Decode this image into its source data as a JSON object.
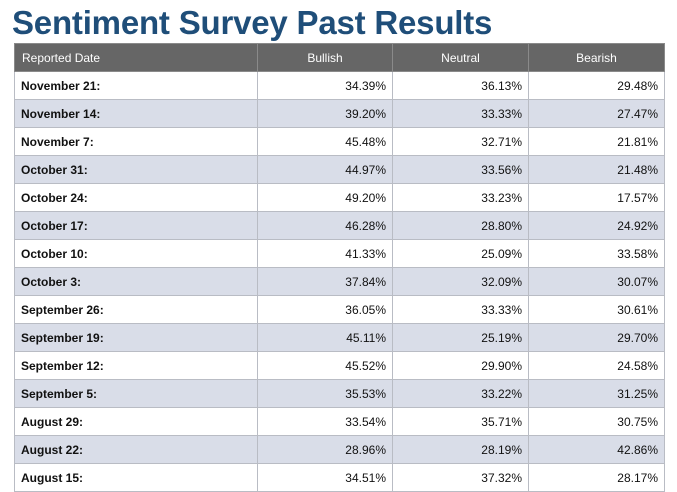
{
  "page": {
    "title": "Sentiment Survey Past Results"
  },
  "table": {
    "columns": [
      "Reported Date",
      "Bullish",
      "Neutral",
      "Bearish"
    ],
    "rows": [
      {
        "date": "November 21:",
        "bullish": "34.39%",
        "neutral": "36.13%",
        "bearish": "29.48%"
      },
      {
        "date": "November 14:",
        "bullish": "39.20%",
        "neutral": "33.33%",
        "bearish": "27.47%"
      },
      {
        "date": "November 7:",
        "bullish": "45.48%",
        "neutral": "32.71%",
        "bearish": "21.81%"
      },
      {
        "date": "October 31:",
        "bullish": "44.97%",
        "neutral": "33.56%",
        "bearish": "21.48%"
      },
      {
        "date": "October 24:",
        "bullish": "49.20%",
        "neutral": "33.23%",
        "bearish": "17.57%"
      },
      {
        "date": "October 17:",
        "bullish": "46.28%",
        "neutral": "28.80%",
        "bearish": "24.92%"
      },
      {
        "date": "October 10:",
        "bullish": "41.33%",
        "neutral": "25.09%",
        "bearish": "33.58%"
      },
      {
        "date": "October 3:",
        "bullish": "37.84%",
        "neutral": "32.09%",
        "bearish": "30.07%"
      },
      {
        "date": "September 26:",
        "bullish": "36.05%",
        "neutral": "33.33%",
        "bearish": "30.61%"
      },
      {
        "date": "September 19:",
        "bullish": "45.11%",
        "neutral": "25.19%",
        "bearish": "29.70%"
      },
      {
        "date": "September 12:",
        "bullish": "45.52%",
        "neutral": "29.90%",
        "bearish": "24.58%"
      },
      {
        "date": "September 5:",
        "bullish": "35.53%",
        "neutral": "33.22%",
        "bearish": "31.25%"
      },
      {
        "date": "August 29:",
        "bullish": "33.54%",
        "neutral": "35.71%",
        "bearish": "30.75%"
      },
      {
        "date": "August 22:",
        "bullish": "28.96%",
        "neutral": "28.19%",
        "bearish": "42.86%"
      },
      {
        "date": "August 15:",
        "bullish": "34.51%",
        "neutral": "37.32%",
        "bearish": "28.17%"
      }
    ]
  },
  "colors": {
    "title": "#1f4e79",
    "header_bg": "#666666",
    "header_text": "#ffffff",
    "row_alt_bg": "#d9dde8",
    "row_bg": "#ffffff",
    "border": "#b9bcc4"
  }
}
